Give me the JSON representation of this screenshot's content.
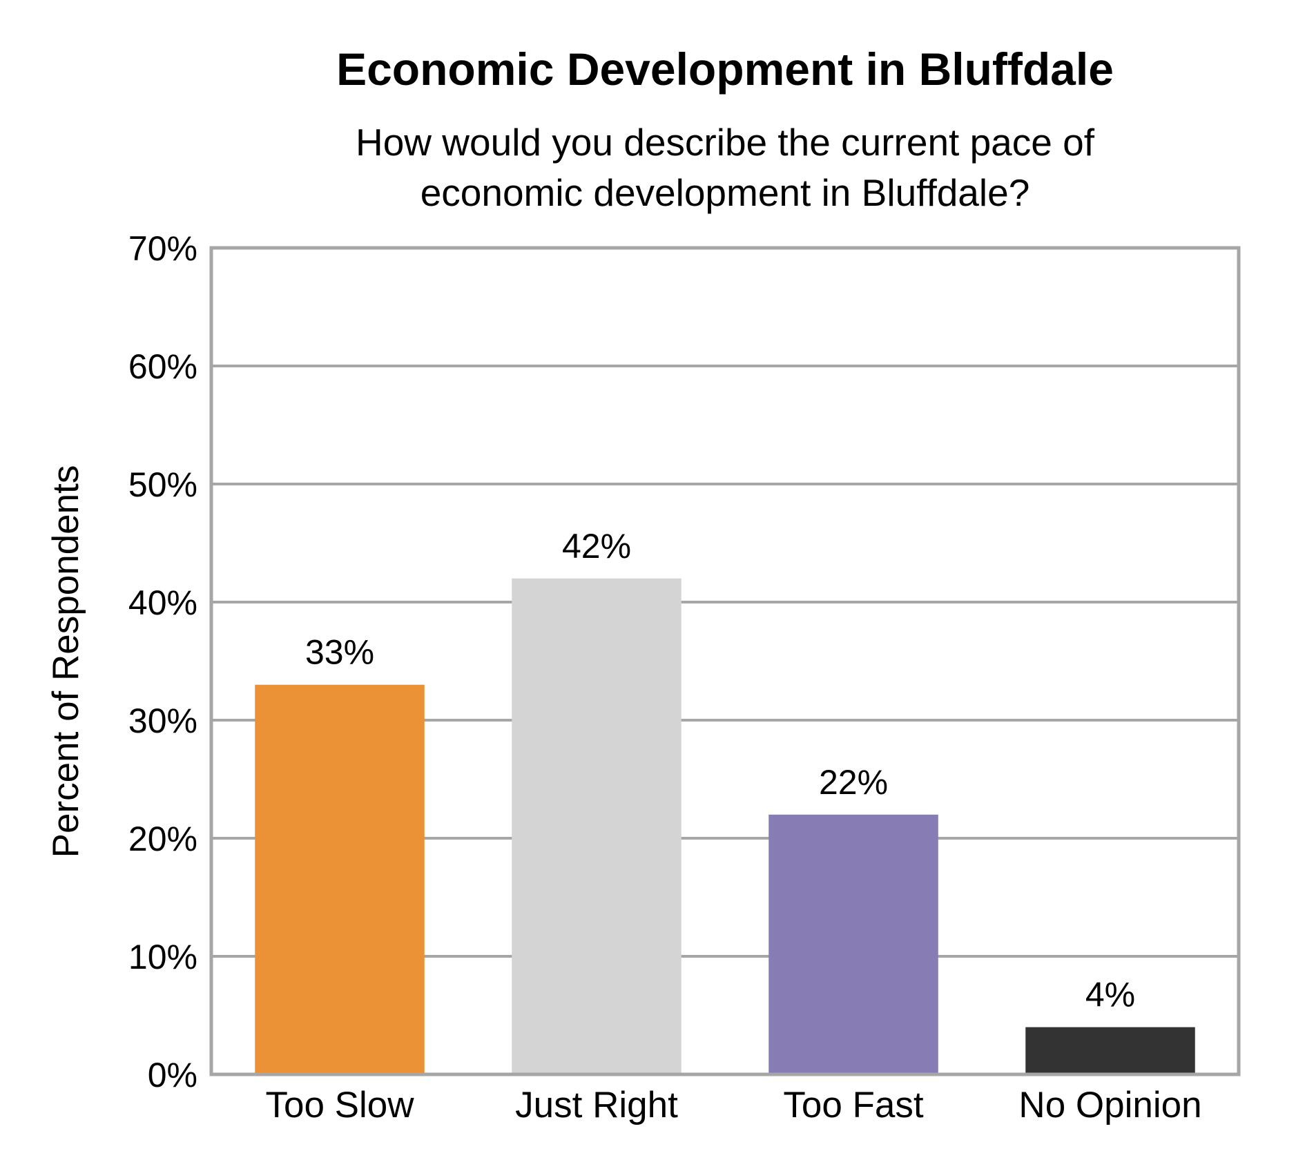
{
  "chart_data": {
    "type": "bar",
    "title": "Economic Development in Bluffdale",
    "subtitle_lines": [
      "How would you describe the current pace of",
      "economic development in Bluffdale?"
    ],
    "xlabel": "",
    "ylabel": "Percent of Respondents",
    "ylim": [
      0,
      70
    ],
    "y_ticks": [
      0,
      10,
      20,
      30,
      40,
      50,
      60,
      70
    ],
    "y_tick_labels": [
      "0%",
      "10%",
      "20%",
      "30%",
      "40%",
      "50%",
      "60%",
      "70%"
    ],
    "categories": [
      "Too Slow",
      "Just Right",
      "Too Fast",
      "No Opinion"
    ],
    "values": [
      33,
      42,
      22,
      4
    ],
    "data_labels": [
      "33%",
      "42%",
      "22%",
      "4%"
    ],
    "colors": [
      "#EA9235",
      "#D4D4D4",
      "#887CB4",
      "#333333"
    ],
    "grid": true,
    "legend": "none"
  },
  "style": {
    "frame_color": "#A6A6A6",
    "grid_color": "#A6A6A6"
  }
}
